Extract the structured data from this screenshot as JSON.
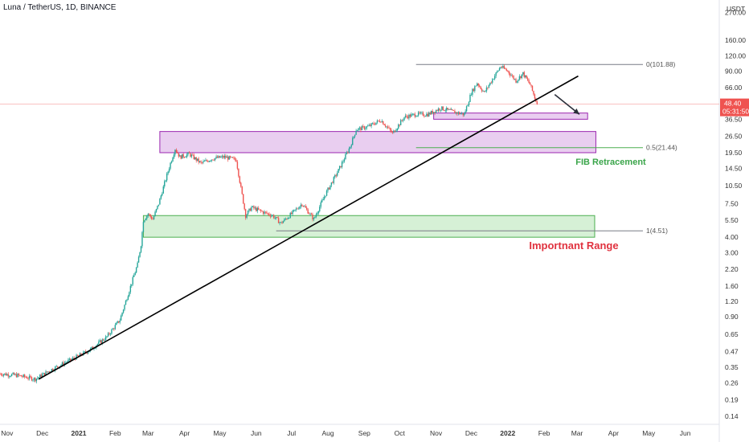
{
  "header": {
    "title": "Luna / TetherUS, 1D, BINANCE"
  },
  "colors": {
    "up": "#26a69a",
    "down": "#ef5350",
    "trendline": "#000000",
    "fib_zone_fill": "#d7a6e4",
    "fib_zone_stroke": "#9c27b0",
    "range_fill": "#c8ebc8",
    "range_stroke": "#4caf50",
    "price_line": "#ef5350",
    "fib_label": "#3aa54a",
    "range_label": "#e0323f"
  },
  "chart_data": {
    "type": "candlestick",
    "symbol": "Luna / TetherUS, 1D, BINANCE",
    "currency": "USDT",
    "y_scale": "log",
    "ylim": [
      0.12,
      260
    ],
    "y_ticks": [
      "270.00",
      "160.00",
      "120.00",
      "90.00",
      "66.00",
      "48.40",
      "36.50",
      "26.50",
      "19.50",
      "14.50",
      "10.50",
      "7.50",
      "5.50",
      "4.00",
      "3.00",
      "2.20",
      "1.60",
      "1.20",
      "0.90",
      "0.65",
      "0.47",
      "0.35",
      "0.26",
      "0.19",
      "0.14"
    ],
    "x_ticks": [
      "Nov",
      "Dec",
      "2021",
      "Feb",
      "Mar",
      "Apr",
      "May",
      "Jun",
      "Jul",
      "Aug",
      "Sep",
      "Oct",
      "Nov",
      "Dec",
      "2022",
      "Feb",
      "Mar",
      "Apr",
      "May",
      "Jun"
    ],
    "x_range": [
      "2020-10-26",
      "2022-06-30"
    ],
    "price_path": [
      [
        "2020-10-26",
        0.31
      ],
      [
        "2020-11-10",
        0.3
      ],
      [
        "2020-11-25",
        0.28
      ],
      [
        "2020-12-10",
        0.34
      ],
      [
        "2020-12-25",
        0.4
      ],
      [
        "2021-01-10",
        0.48
      ],
      [
        "2021-01-25",
        0.62
      ],
      [
        "2021-02-05",
        0.85
      ],
      [
        "2021-02-10",
        1.2
      ],
      [
        "2021-02-15",
        1.7
      ],
      [
        "2021-02-20",
        2.4
      ],
      [
        "2021-02-23",
        3.5
      ],
      [
        "2021-02-25",
        5.5
      ],
      [
        "2021-03-01",
        6.2
      ],
      [
        "2021-03-05",
        5.6
      ],
      [
        "2021-03-10",
        7.5
      ],
      [
        "2021-03-15",
        11.0
      ],
      [
        "2021-03-20",
        16.0
      ],
      [
        "2021-03-24",
        21.0
      ],
      [
        "2021-03-28",
        18.0
      ],
      [
        "2021-04-05",
        19.0
      ],
      [
        "2021-04-15",
        16.0
      ],
      [
        "2021-04-25",
        17.5
      ],
      [
        "2021-05-05",
        18.0
      ],
      [
        "2021-05-15",
        17.0
      ],
      [
        "2021-05-19",
        10.0
      ],
      [
        "2021-05-23",
        6.0
      ],
      [
        "2021-05-28",
        7.0
      ],
      [
        "2021-06-05",
        6.5
      ],
      [
        "2021-06-15",
        6.0
      ],
      [
        "2021-06-22",
        5.2
      ],
      [
        "2021-07-01",
        6.2
      ],
      [
        "2021-07-10",
        7.5
      ],
      [
        "2021-07-20",
        5.6
      ],
      [
        "2021-07-30",
        9.0
      ],
      [
        "2021-08-10",
        14.0
      ],
      [
        "2021-08-20",
        22.0
      ],
      [
        "2021-08-25",
        30.0
      ],
      [
        "2021-09-05",
        32.0
      ],
      [
        "2021-09-15",
        36.0
      ],
      [
        "2021-09-25",
        28.0
      ],
      [
        "2021-10-05",
        38.0
      ],
      [
        "2021-10-15",
        40.0
      ],
      [
        "2021-10-25",
        40.0
      ],
      [
        "2021-11-05",
        45.0
      ],
      [
        "2021-11-15",
        42.0
      ],
      [
        "2021-11-25",
        40.0
      ],
      [
        "2021-12-01",
        60.0
      ],
      [
        "2021-12-06",
        72.0
      ],
      [
        "2021-12-12",
        60.0
      ],
      [
        "2021-12-20",
        80.0
      ],
      [
        "2021-12-26",
        98.0
      ],
      [
        "2022-01-01",
        90.0
      ],
      [
        "2022-01-08",
        75.0
      ],
      [
        "2022-01-14",
        86.0
      ],
      [
        "2022-01-20",
        70.0
      ],
      [
        "2022-01-26",
        48.4
      ]
    ],
    "trendline": {
      "from": [
        "2020-11-28",
        0.28
      ],
      "to": [
        "2022-03-02",
        82.0
      ]
    },
    "arrow": {
      "from": [
        "2022-02-10",
        58.0
      ],
      "to": [
        "2022-03-03",
        40.0
      ]
    },
    "zones": [
      {
        "name": "target-zone",
        "from": "2021-10-30",
        "to": "2022-03-10",
        "low": 36.5,
        "high": 41.0
      },
      {
        "name": "fib-zone",
        "from": "2021-03-11",
        "to": "2022-03-17",
        "low": 19.5,
        "high": 29.0
      },
      {
        "name": "important-range",
        "from": "2021-02-25",
        "to": "2022-03-16",
        "low": 4.0,
        "high": 6.0
      }
    ],
    "fib_levels": [
      {
        "label": "0(101.88)",
        "price": 101.88,
        "from": "2021-10-15"
      },
      {
        "label": "0.5(21.44)",
        "price": 21.44,
        "from": "2021-10-15"
      },
      {
        "label": "1(4.51)",
        "price": 4.51,
        "from": "2021-06-18"
      }
    ],
    "last_price": "48.40",
    "countdown": "05:31:50",
    "annotations": {
      "fib": "FIB Retracement",
      "range": "Importnant Range"
    }
  }
}
